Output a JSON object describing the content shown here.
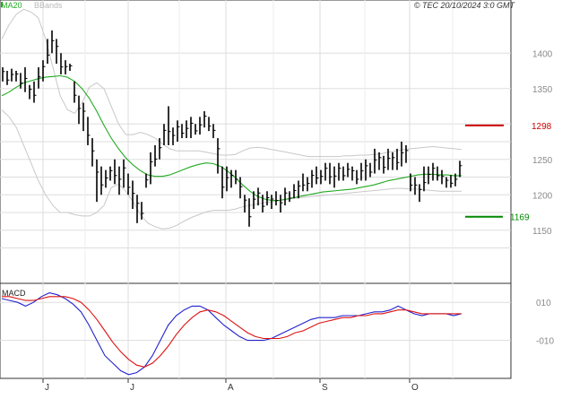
{
  "header": {
    "copyright": "© TEC 20/10/2024 3:0 GMT",
    "legend_ma": "MA20",
    "legend_bb": "BBands"
  },
  "macd_panel": {
    "title": "MACD"
  },
  "colors": {
    "ma": "#22aa22",
    "bbands": "#c8c8c8",
    "bars": "#000000",
    "resistance": "#cc0000",
    "support": "#008800",
    "macd": "#2222cc",
    "signal": "#dd1111",
    "grid": "#dddddd"
  },
  "chart_data": [
    {
      "type": "ohlc-bar",
      "ylim": [
        1075,
        1475
      ],
      "y_ticks": [
        1150,
        1200,
        1250,
        1300,
        1350,
        1400
      ],
      "y_tick_labels": [
        "1150",
        "1200",
        "1250",
        "",
        "1350",
        "1400"
      ],
      "x_ticks": [
        "J",
        "J",
        "A",
        "S",
        "O"
      ],
      "grid": true,
      "levels": [
        {
          "label": "1298",
          "value": 1298,
          "color": "resistance"
        },
        {
          "label": "1169",
          "value": 1169,
          "color": "support"
        }
      ],
      "bars": [
        [
          1380,
          1360
        ],
        [
          1375,
          1355
        ],
        [
          1378,
          1360
        ],
        [
          1375,
          1360
        ],
        [
          1372,
          1350
        ],
        [
          1380,
          1345
        ],
        [
          1355,
          1335
        ],
        [
          1360,
          1330
        ],
        [
          1380,
          1350
        ],
        [
          1390,
          1360
        ],
        [
          1420,
          1385
        ],
        [
          1432,
          1400
        ],
        [
          1420,
          1385
        ],
        [
          1400,
          1370
        ],
        [
          1390,
          1370
        ],
        [
          1385,
          1375
        ],
        [
          1360,
          1330
        ],
        [
          1340,
          1300
        ],
        [
          1330,
          1290
        ],
        [
          1310,
          1270
        ],
        [
          1280,
          1240
        ],
        [
          1250,
          1190
        ],
        [
          1240,
          1200
        ],
        [
          1235,
          1210
        ],
        [
          1240,
          1220
        ],
        [
          1250,
          1215
        ],
        [
          1240,
          1200
        ],
        [
          1250,
          1210
        ],
        [
          1230,
          1200
        ],
        [
          1220,
          1180
        ],
        [
          1200,
          1160
        ],
        [
          1190,
          1165
        ],
        [
          1230,
          1210
        ],
        [
          1260,
          1215
        ],
        [
          1270,
          1240
        ],
        [
          1280,
          1250
        ],
        [
          1300,
          1270
        ],
        [
          1325,
          1270
        ],
        [
          1295,
          1270
        ],
        [
          1305,
          1275
        ],
        [
          1300,
          1280
        ],
        [
          1305,
          1280
        ],
        [
          1310,
          1280
        ],
        [
          1300,
          1285
        ],
        [
          1310,
          1285
        ],
        [
          1318,
          1295
        ],
        [
          1310,
          1290
        ],
        [
          1300,
          1280
        ],
        [
          1280,
          1230
        ],
        [
          1240,
          1195
        ],
        [
          1240,
          1205
        ],
        [
          1235,
          1210
        ],
        [
          1235,
          1215
        ],
        [
          1225,
          1195
        ],
        [
          1200,
          1175
        ],
        [
          1195,
          1155
        ],
        [
          1205,
          1180
        ],
        [
          1210,
          1185
        ],
        [
          1200,
          1175
        ],
        [
          1205,
          1185
        ],
        [
          1200,
          1180
        ],
        [
          1205,
          1185
        ],
        [
          1200,
          1175
        ],
        [
          1210,
          1185
        ],
        [
          1205,
          1190
        ],
        [
          1215,
          1195
        ],
        [
          1220,
          1195
        ],
        [
          1230,
          1205
        ],
        [
          1225,
          1205
        ],
        [
          1235,
          1210
        ],
        [
          1240,
          1215
        ],
        [
          1235,
          1215
        ],
        [
          1245,
          1220
        ],
        [
          1245,
          1215
        ],
        [
          1240,
          1210
        ],
        [
          1245,
          1220
        ],
        [
          1240,
          1220
        ],
        [
          1245,
          1225
        ],
        [
          1240,
          1220
        ],
        [
          1235,
          1215
        ],
        [
          1245,
          1220
        ],
        [
          1250,
          1220
        ],
        [
          1245,
          1225
        ],
        [
          1265,
          1230
        ],
        [
          1260,
          1235
        ],
        [
          1255,
          1230
        ],
        [
          1265,
          1235
        ],
        [
          1260,
          1235
        ],
        [
          1265,
          1235
        ],
        [
          1275,
          1240
        ],
        [
          1270,
          1245
        ],
        [
          1230,
          1205
        ],
        [
          1225,
          1200
        ],
        [
          1215,
          1190
        ],
        [
          1240,
          1205
        ],
        [
          1240,
          1215
        ],
        [
          1245,
          1220
        ],
        [
          1240,
          1220
        ],
        [
          1235,
          1215
        ],
        [
          1225,
          1210
        ],
        [
          1228,
          1210
        ],
        [
          1230,
          1212
        ],
        [
          1248,
          1225
        ]
      ],
      "ma20": [
        1340,
        1345,
        1352,
        1358,
        1361,
        1364,
        1366,
        1367,
        1368,
        1366,
        1360,
        1350,
        1336,
        1318,
        1298,
        1280,
        1265,
        1252,
        1242,
        1234,
        1228,
        1226,
        1226,
        1228,
        1232,
        1236,
        1240,
        1243,
        1245,
        1244,
        1240,
        1233,
        1224,
        1214,
        1205,
        1198,
        1194,
        1192,
        1192,
        1194,
        1196,
        1198,
        1200,
        1202,
        1204,
        1205,
        1206,
        1207,
        1208,
        1210,
        1212,
        1214,
        1217,
        1220,
        1222,
        1224,
        1226,
        1228,
        1229,
        1229,
        1228,
        1228,
        1227,
        1227
      ],
      "bb_upper": [
        1420,
        1440,
        1455,
        1462,
        1458,
        1450,
        1420,
        1380,
        1340,
        1320,
        1315,
        1330,
        1352,
        1358,
        1350,
        1325,
        1300,
        1285,
        1285,
        1288,
        1285,
        1280,
        1272,
        1265,
        1262,
        1262,
        1262,
        1262,
        1260,
        1258,
        1256,
        1256,
        1257,
        1262,
        1266,
        1267,
        1266,
        1264,
        1262,
        1260,
        1258,
        1256,
        1254,
        1254,
        1254,
        1254,
        1254,
        1255,
        1255,
        1256,
        1256,
        1257,
        1258,
        1260,
        1262,
        1264,
        1265,
        1266,
        1267,
        1268,
        1267,
        1266,
        1265,
        1264
      ],
      "bb_lower": [
        1320,
        1310,
        1295,
        1270,
        1245,
        1220,
        1200,
        1185,
        1175,
        1175,
        1172,
        1170,
        1170,
        1175,
        1185,
        1210,
        1215,
        1205,
        1190,
        1172,
        1160,
        1155,
        1152,
        1153,
        1157,
        1163,
        1168,
        1172,
        1176,
        1178,
        1178,
        1178,
        1180,
        1183,
        1185,
        1187,
        1189,
        1190,
        1192,
        1193,
        1195,
        1196,
        1197,
        1198,
        1199,
        1200,
        1201,
        1202,
        1203,
        1204,
        1205,
        1206,
        1207,
        1208,
        1209,
        1209,
        1208,
        1208,
        1207,
        1206,
        1205,
        1205,
        1205,
        1205
      ]
    },
    {
      "type": "line",
      "title": "MACD",
      "ylim": [
        -30,
        20
      ],
      "y_ticks": [
        10,
        -10
      ],
      "y_tick_labels": [
        "010",
        "-010"
      ],
      "series": [
        {
          "name": "MACD",
          "color": "macd",
          "values": [
            12,
            11,
            10,
            8,
            10,
            13,
            15,
            14,
            12,
            9,
            5,
            -2,
            -10,
            -18,
            -22,
            -26,
            -28,
            -27,
            -24,
            -18,
            -10,
            -2,
            3,
            6,
            8,
            8,
            6,
            2,
            -2,
            -5,
            -8,
            -10,
            -10,
            -10,
            -9,
            -7,
            -5,
            -3,
            -1,
            1,
            2,
            2,
            2,
            3,
            3,
            3,
            4,
            5,
            5,
            6,
            8,
            6,
            4,
            3,
            4,
            4,
            4,
            3,
            4
          ]
        },
        {
          "name": "Signal",
          "color": "signal",
          "values": [
            13,
            13,
            12,
            11,
            11,
            12,
            13,
            13,
            13,
            12,
            10,
            6,
            1,
            -5,
            -11,
            -16,
            -20,
            -23,
            -24,
            -22,
            -18,
            -13,
            -7,
            -2,
            2,
            5,
            6,
            5,
            3,
            0,
            -3,
            -6,
            -8,
            -9,
            -9,
            -9,
            -8,
            -6,
            -5,
            -3,
            -1,
            0,
            1,
            2,
            2,
            3,
            3,
            4,
            4,
            5,
            6,
            6,
            5,
            4,
            4,
            4,
            4,
            4,
            4
          ]
        }
      ]
    }
  ]
}
